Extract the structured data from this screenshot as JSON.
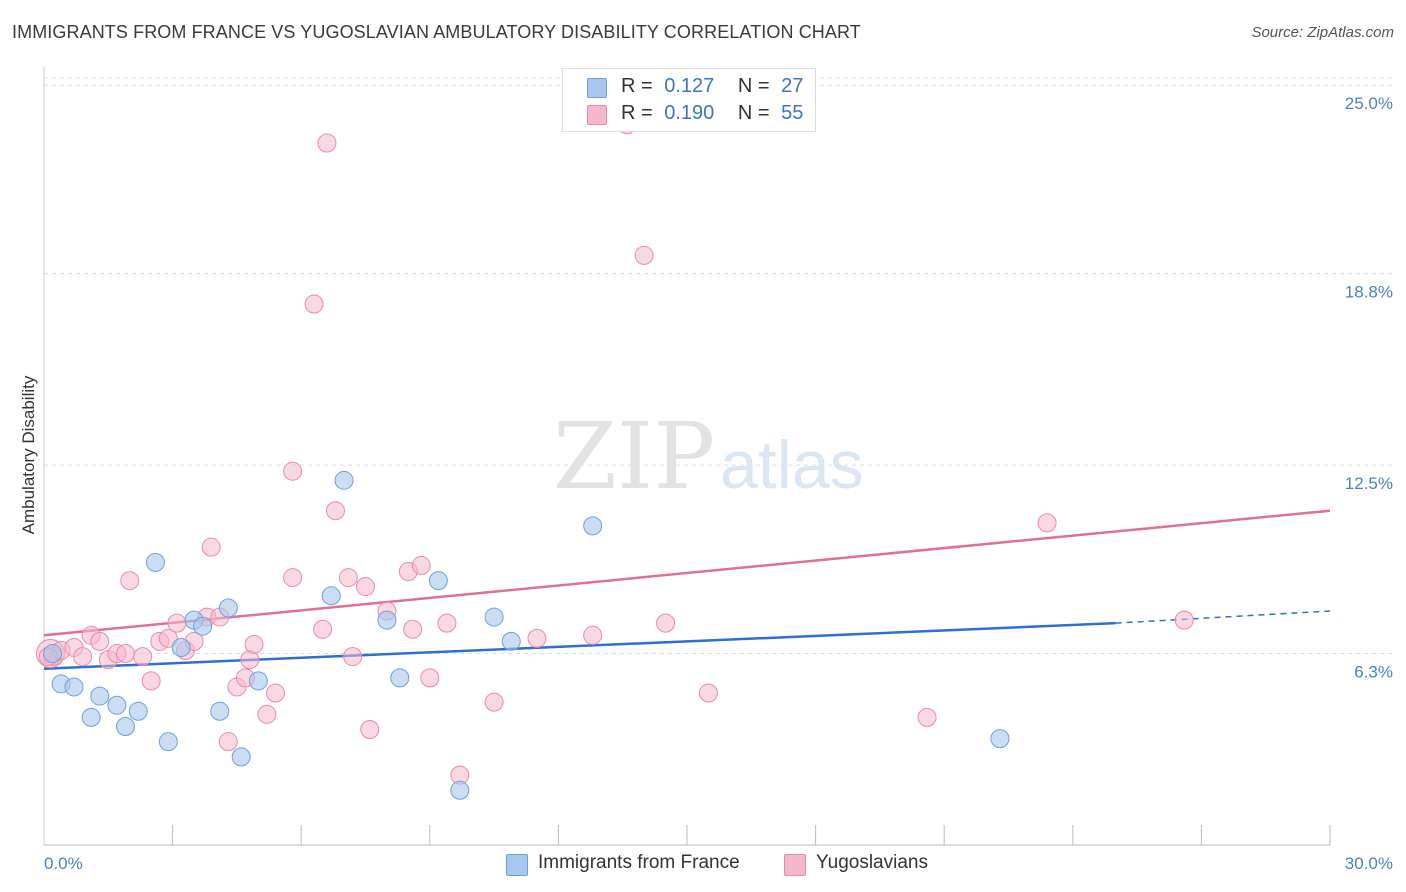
{
  "header": {
    "title": "IMMIGRANTS FROM FRANCE VS YUGOSLAVIAN AMBULATORY DISABILITY CORRELATION CHART",
    "source": "Source: ZipAtlas.com"
  },
  "watermark": {
    "zip": "ZIP",
    "atlas": "atlas"
  },
  "legend": {
    "r_label": "R =",
    "n_label": "N =",
    "series": [
      {
        "name": "Immigrants from France",
        "r": "0.127",
        "n": "27"
      },
      {
        "name": "Yugoslavians",
        "r": "0.190",
        "n": "55"
      }
    ]
  },
  "colors": {
    "blue_fill": "#a9c7ee",
    "blue_stroke": "#6f9fdc",
    "blue_line": "#2e6fcf",
    "pink_fill": "#f5b8cb",
    "pink_stroke": "#e98aa9",
    "pink_line": "#e06f98",
    "tick_label": "#4a7fc8",
    "grid": "#dcdcdc"
  },
  "chart_data": {
    "type": "scatter",
    "title": "IMMIGRANTS FROM FRANCE VS YUGOSLAVIAN AMBULATORY DISABILITY CORRELATION CHART",
    "xlabel": "",
    "ylabel": "Ambulatory Disability",
    "xlim": [
      0,
      30
    ],
    "ylim": [
      0,
      25.6
    ],
    "x_tick_labels": {
      "left": "0.0%",
      "right": "30.0%"
    },
    "y_ticks": [
      {
        "value": 6.3,
        "label": "6.3%"
      },
      {
        "value": 12.5,
        "label": "12.5%"
      },
      {
        "value": 18.8,
        "label": "18.8%"
      },
      {
        "value": 25.0,
        "label": "25.0%"
      }
    ],
    "series": [
      {
        "name": "Immigrants from France",
        "color": "#a9c7ee",
        "points": [
          [
            0.2,
            6.3
          ],
          [
            0.4,
            5.3
          ],
          [
            0.7,
            5.2
          ],
          [
            1.1,
            4.2
          ],
          [
            1.3,
            4.9
          ],
          [
            1.7,
            4.6
          ],
          [
            1.9,
            3.9
          ],
          [
            2.2,
            4.4
          ],
          [
            2.6,
            9.3
          ],
          [
            2.9,
            3.4
          ],
          [
            3.2,
            6.5
          ],
          [
            3.5,
            7.4
          ],
          [
            3.7,
            7.2
          ],
          [
            4.1,
            4.4
          ],
          [
            4.3,
            7.8
          ],
          [
            4.6,
            2.9
          ],
          [
            5.0,
            5.4
          ],
          [
            6.7,
            8.2
          ],
          [
            7.0,
            12.0
          ],
          [
            8.0,
            7.4
          ],
          [
            8.3,
            5.5
          ],
          [
            9.2,
            8.7
          ],
          [
            9.7,
            1.8
          ],
          [
            10.5,
            7.5
          ],
          [
            10.9,
            6.7
          ],
          [
            12.8,
            10.5
          ],
          [
            22.3,
            3.5
          ]
        ],
        "trend": {
          "x0": 0,
          "y0": 5.8,
          "x1": 25.0,
          "y1": 7.3,
          "dashed_to_x": 30,
          "dashed_to_y": 7.7
        }
      },
      {
        "name": "Yugoslavians",
        "color": "#f5b8cb",
        "points": [
          [
            0.2,
            6.2
          ],
          [
            0.4,
            6.4
          ],
          [
            0.7,
            6.5
          ],
          [
            0.9,
            6.2
          ],
          [
            1.1,
            6.9
          ],
          [
            1.3,
            6.7
          ],
          [
            1.5,
            6.1
          ],
          [
            1.7,
            6.3
          ],
          [
            1.9,
            6.3
          ],
          [
            2.0,
            8.7
          ],
          [
            2.3,
            6.2
          ],
          [
            2.5,
            5.4
          ],
          [
            2.7,
            6.7
          ],
          [
            2.9,
            6.8
          ],
          [
            3.1,
            7.3
          ],
          [
            3.3,
            6.4
          ],
          [
            3.5,
            6.7
          ],
          [
            3.8,
            7.5
          ],
          [
            3.9,
            9.8
          ],
          [
            4.1,
            7.5
          ],
          [
            4.3,
            3.4
          ],
          [
            4.5,
            5.2
          ],
          [
            4.7,
            5.5
          ],
          [
            4.8,
            6.1
          ],
          [
            4.9,
            6.6
          ],
          [
            5.2,
            4.3
          ],
          [
            5.4,
            5.0
          ],
          [
            5.8,
            12.3
          ],
          [
            5.8,
            8.8
          ],
          [
            6.3,
            17.8
          ],
          [
            6.5,
            7.1
          ],
          [
            6.6,
            23.1
          ],
          [
            6.8,
            11.0
          ],
          [
            7.1,
            8.8
          ],
          [
            7.2,
            6.2
          ],
          [
            7.5,
            8.5
          ],
          [
            7.6,
            3.8
          ],
          [
            8.0,
            7.7
          ],
          [
            8.5,
            9.0
          ],
          [
            8.6,
            7.1
          ],
          [
            8.8,
            9.2
          ],
          [
            9.0,
            5.5
          ],
          [
            9.4,
            7.3
          ],
          [
            9.7,
            2.3
          ],
          [
            10.5,
            4.7
          ],
          [
            11.5,
            6.8
          ],
          [
            12.8,
            6.9
          ],
          [
            13.6,
            23.7
          ],
          [
            14.0,
            19.4
          ],
          [
            14.5,
            7.3
          ],
          [
            15.5,
            5.0
          ],
          [
            20.6,
            4.2
          ],
          [
            23.4,
            10.6
          ],
          [
            26.6,
            7.4
          ],
          [
            0.1,
            6.2
          ]
        ],
        "trend": {
          "x0": 0,
          "y0": 6.9,
          "x1": 30,
          "y1": 11.0
        }
      }
    ]
  }
}
